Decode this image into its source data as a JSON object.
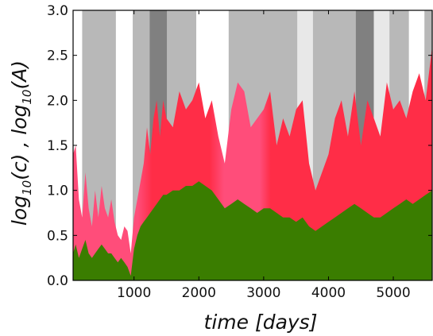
{
  "chart_data": {
    "type": "area",
    "xlabel": "time [days]",
    "ylabel_main": "log",
    "ylabel_sub1": "10",
    "ylabel_arg1": "(c) , log",
    "ylabel_sub2": "10",
    "ylabel_arg2": "(A)",
    "xlim": [
      60,
      5600
    ],
    "ylim": [
      0.0,
      3.0
    ],
    "xticks": [
      1000,
      2000,
      3000,
      4000,
      5000
    ],
    "xtick_labels": [
      "1000",
      "2000",
      "3000",
      "4000",
      "5000"
    ],
    "yticks": [
      0.0,
      0.5,
      1.0,
      1.5,
      2.0,
      2.5,
      3.0
    ],
    "ytick_labels": [
      "0.0",
      "0.5",
      "1.0",
      "1.5",
      "2.0",
      "2.5",
      "3.0"
    ],
    "grid": false,
    "colors": {
      "log_c_high": "#ff2d47",
      "log_c_low": "#ff4d7a",
      "log_A": "#3a7d00",
      "band_light": "#e8e8e8",
      "band_mid": "#b8b8b8",
      "band_dark": "#808080"
    },
    "background_bands": [
      {
        "x0": 60,
        "x1": 200,
        "shade": "none"
      },
      {
        "x0": 200,
        "x1": 720,
        "shade": "mid"
      },
      {
        "x0": 720,
        "x1": 980,
        "shade": "none"
      },
      {
        "x0": 980,
        "x1": 1240,
        "shade": "mid"
      },
      {
        "x0": 1240,
        "x1": 1510,
        "shade": "dark"
      },
      {
        "x0": 1510,
        "x1": 1960,
        "shade": "mid"
      },
      {
        "x0": 1960,
        "x1": 2460,
        "shade": "none"
      },
      {
        "x0": 2460,
        "x1": 3520,
        "shade": "mid"
      },
      {
        "x0": 3520,
        "x1": 3760,
        "shade": "light"
      },
      {
        "x0": 3760,
        "x1": 4420,
        "shade": "mid"
      },
      {
        "x0": 4420,
        "x1": 4700,
        "shade": "dark"
      },
      {
        "x0": 4700,
        "x1": 4940,
        "shade": "light"
      },
      {
        "x0": 4940,
        "x1": 5240,
        "shade": "mid"
      },
      {
        "x0": 5240,
        "x1": 5480,
        "shade": "none"
      },
      {
        "x0": 5480,
        "x1": 5600,
        "shade": "mid"
      }
    ],
    "series": [
      {
        "key": "log_c",
        "x": [
          60,
          100,
          150,
          200,
          250,
          300,
          350,
          400,
          450,
          500,
          550,
          600,
          650,
          700,
          750,
          800,
          850,
          900,
          950,
          1000,
          1050,
          1100,
          1150,
          1200,
          1250,
          1300,
          1350,
          1400,
          1450,
          1500,
          1600,
          1700,
          1800,
          1900,
          2000,
          2100,
          2200,
          2300,
          2400,
          2500,
          2600,
          2700,
          2800,
          2900,
          3000,
          3100,
          3200,
          3300,
          3400,
          3500,
          3600,
          3700,
          3800,
          3900,
          4000,
          4100,
          4200,
          4300,
          4400,
          4500,
          4600,
          4700,
          4800,
          4900,
          5000,
          5100,
          5200,
          5300,
          5400,
          5500,
          5600
        ],
        "y": [
          1.4,
          1.5,
          0.9,
          0.7,
          1.2,
          0.8,
          0.6,
          1.0,
          0.7,
          1.05,
          0.8,
          0.7,
          0.9,
          0.65,
          0.5,
          0.45,
          0.6,
          0.55,
          0.3,
          0.7,
          0.9,
          1.1,
          1.3,
          1.7,
          1.4,
          1.8,
          2.0,
          1.6,
          2.0,
          1.8,
          1.7,
          2.1,
          1.9,
          2.0,
          2.2,
          1.8,
          2.0,
          1.6,
          1.3,
          1.9,
          2.2,
          2.1,
          1.7,
          1.8,
          1.9,
          2.1,
          1.5,
          1.8,
          1.6,
          1.9,
          2.0,
          1.3,
          1.0,
          1.2,
          1.4,
          1.8,
          2.0,
          1.6,
          2.1,
          1.5,
          2.0,
          1.8,
          1.6,
          2.2,
          1.9,
          2.0,
          1.8,
          2.1,
          2.3,
          2.0,
          2.6
        ]
      },
      {
        "key": "log_A",
        "x": [
          60,
          100,
          150,
          200,
          250,
          300,
          350,
          400,
          450,
          500,
          550,
          600,
          650,
          700,
          750,
          800,
          850,
          900,
          950,
          1000,
          1050,
          1100,
          1150,
          1200,
          1250,
          1300,
          1350,
          1400,
          1450,
          1500,
          1600,
          1700,
          1800,
          1900,
          2000,
          2100,
          2200,
          2300,
          2400,
          2500,
          2600,
          2700,
          2800,
          2900,
          3000,
          3100,
          3200,
          3300,
          3400,
          3500,
          3600,
          3700,
          3800,
          3900,
          4000,
          4100,
          4200,
          4300,
          4400,
          4500,
          4600,
          4700,
          4800,
          4900,
          5000,
          5100,
          5200,
          5300,
          5400,
          5500,
          5600
        ],
        "y": [
          0.3,
          0.4,
          0.25,
          0.35,
          0.45,
          0.3,
          0.25,
          0.3,
          0.35,
          0.4,
          0.35,
          0.3,
          0.3,
          0.25,
          0.2,
          0.25,
          0.2,
          0.15,
          0.05,
          0.35,
          0.5,
          0.6,
          0.65,
          0.7,
          0.75,
          0.8,
          0.85,
          0.9,
          0.95,
          0.95,
          1.0,
          1.0,
          1.05,
          1.05,
          1.1,
          1.05,
          1.0,
          0.9,
          0.8,
          0.85,
          0.9,
          0.85,
          0.8,
          0.75,
          0.8,
          0.8,
          0.75,
          0.7,
          0.7,
          0.65,
          0.7,
          0.6,
          0.55,
          0.6,
          0.65,
          0.7,
          0.75,
          0.8,
          0.85,
          0.8,
          0.75,
          0.7,
          0.7,
          0.75,
          0.8,
          0.85,
          0.9,
          0.85,
          0.9,
          0.95,
          1.0
        ]
      }
    ]
  }
}
